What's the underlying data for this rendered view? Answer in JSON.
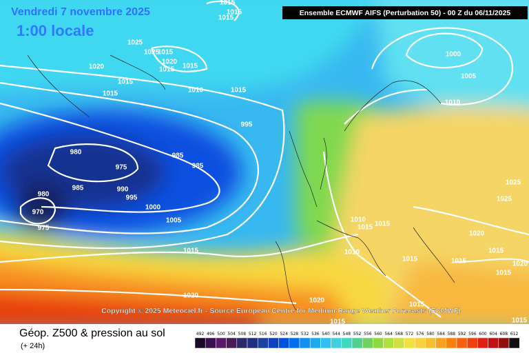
{
  "header": {
    "date": "Vendredi 7 novembre 2025",
    "time": "1:00 locale",
    "model": "Ensemble ECMWF AIFS  (Perturbation 50)  -  00 Z du 06/11/2025"
  },
  "copyright": "Copyright © 2025 Meteociel.fr - Source European Centre for Medium-Range Weather Forecasts (ECMWF)",
  "footer": {
    "title": "Géop. Z500 & pression au sol",
    "subtitle": "(+ 24h)"
  },
  "isobar_labels": [
    "1015",
    "1015",
    "1015",
    "1025",
    "1025",
    "1015",
    "1020",
    "1015",
    "1015",
    "1020",
    "1015",
    "1015",
    "1010",
    "1015",
    "995",
    "980",
    "975",
    "985",
    "985",
    "985",
    "990",
    "995",
    "980",
    "1000",
    "970",
    "975",
    "1005",
    "1015",
    "1020",
    "1020",
    "1015",
    "1000",
    "1005",
    "1010",
    "1025",
    "1025",
    "1010",
    "1015",
    "1015",
    "1020",
    "1010",
    "1015",
    "1015",
    "1015",
    "1020",
    "1015",
    "1015",
    "1015"
  ],
  "scale": {
    "labels": [
      492,
      496,
      500,
      504,
      508,
      512,
      516,
      520,
      524,
      528,
      532,
      536,
      540,
      544,
      548,
      552,
      556,
      560,
      564,
      568,
      572,
      576,
      580,
      584,
      588,
      592,
      596,
      600,
      604,
      608,
      612
    ],
    "colors": [
      "#1a0a2a",
      "#3a0f4f",
      "#5a1a6a",
      "#4a1a5a",
      "#2a2a6a",
      "#203080",
      "#1a40a0",
      "#1040c0",
      "#0050e0",
      "#0070f0",
      "#1090f0",
      "#20a8f0",
      "#30c0f0",
      "#40d0e0",
      "#40d8c0",
      "#50d090",
      "#70d060",
      "#90d840",
      "#b0e040",
      "#d0e040",
      "#f0e040",
      "#f8d040",
      "#f8c030",
      "#f8a020",
      "#f88010",
      "#f86010",
      "#f04010",
      "#e02010",
      "#c01010",
      "#901010",
      "#101010"
    ]
  }
}
